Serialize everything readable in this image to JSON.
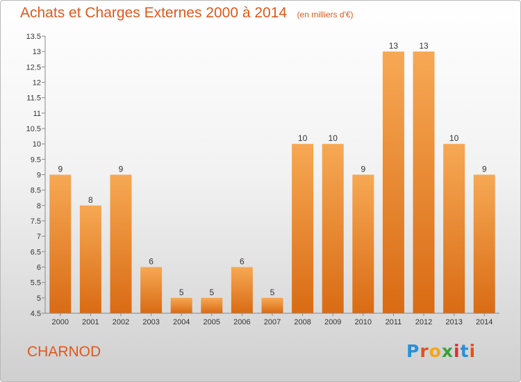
{
  "header": {
    "title": "Achats et Charges Externes 2000 à 2014",
    "unit": "(en milliers d'€)"
  },
  "footer": {
    "town": "CHARNOD",
    "logo_letters": [
      "P",
      "r",
      "o",
      "x",
      "i",
      "t",
      "i"
    ],
    "logo_colors": [
      "#2a8fd6",
      "#e0531a",
      "#f0a818",
      "#3aa03c",
      "#d8303a",
      "#2a8fd6",
      "#e0531a"
    ]
  },
  "chart_data": {
    "type": "bar",
    "categories": [
      "2000",
      "2001",
      "2002",
      "2003",
      "2004",
      "2005",
      "2006",
      "2007",
      "2008",
      "2009",
      "2010",
      "2011",
      "2012",
      "2013",
      "2014"
    ],
    "values": [
      9,
      8,
      9,
      6,
      5,
      5,
      6,
      5,
      10,
      10,
      9,
      13,
      13,
      10,
      9
    ],
    "ylim": [
      4.5,
      13.5
    ],
    "yticks": [
      "4.5",
      "5",
      "5.5",
      "6",
      "6.5",
      "7",
      "7.5",
      "8",
      "8.5",
      "9",
      "9.5",
      "10",
      "10.5",
      "11",
      "11.5",
      "12",
      "12.5",
      "13",
      "13.5"
    ],
    "grid": false,
    "colors": {
      "bar_light": "#f7a854",
      "bar_dark": "#d96b14",
      "text": "#e0581a"
    }
  }
}
